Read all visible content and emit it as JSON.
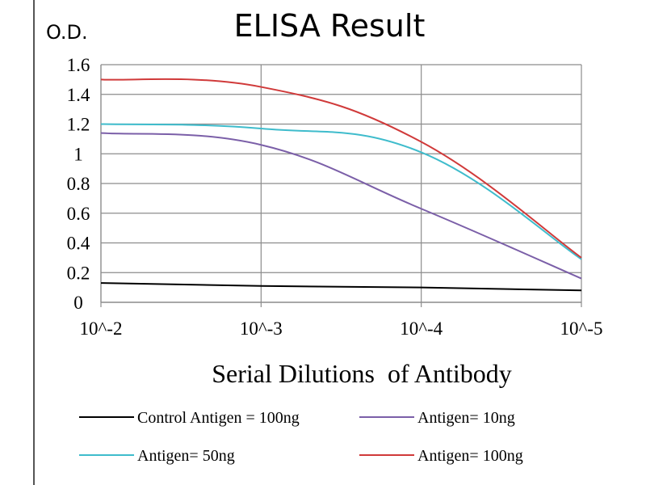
{
  "chart_data": {
    "type": "line",
    "title": "ELISA Result",
    "ylabel": "O.D.",
    "xlabel": "Serial Dilutions  of Antibody",
    "categories": [
      "10^-2",
      "10^-3",
      "10^-4",
      "10^-5"
    ],
    "yticks": [
      "0",
      "0.2",
      "0.4",
      "0.6",
      "0.8",
      "1",
      "1.2",
      "1.4",
      "1.6"
    ],
    "ylim": [
      0,
      1.6
    ],
    "grid": true,
    "legend_position": "bottom",
    "series": [
      {
        "name": "Control Antigen = 100ng",
        "color": "#000000",
        "values": [
          0.13,
          0.11,
          0.1,
          0.08
        ]
      },
      {
        "name": "Antigen= 10ng",
        "color": "#7b5fa8",
        "values": [
          1.14,
          1.06,
          0.63,
          0.16
        ]
      },
      {
        "name": "Antigen= 50ng",
        "color": "#3fbccc",
        "values": [
          1.2,
          1.17,
          1.01,
          0.29
        ]
      },
      {
        "name": "Antigen= 100ng",
        "color": "#d03a3a",
        "values": [
          1.5,
          1.45,
          1.08,
          0.3
        ]
      }
    ]
  }
}
